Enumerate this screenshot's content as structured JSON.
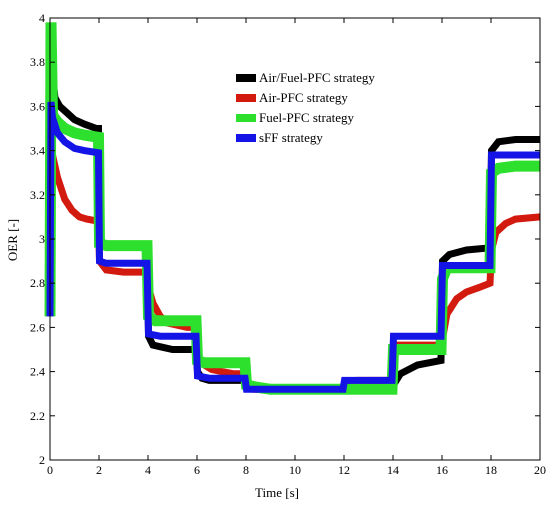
{
  "chart_data": {
    "type": "line",
    "xlabel": "Time [s]",
    "ylabel": "OER [-]",
    "xlim": [
      0,
      20
    ],
    "ylim": [
      2,
      4
    ],
    "xticks": [
      "0",
      "2",
      "4",
      "6",
      "8",
      "10",
      "12",
      "14",
      "16",
      "18",
      "20"
    ],
    "yticks": [
      "2",
      "2.2",
      "2.4",
      "2.6",
      "2.8",
      "3",
      "3.2",
      "3.4",
      "3.6",
      "3.8",
      "4"
    ],
    "grid": false,
    "legend_position": "top-center",
    "series": [
      {
        "name": "Air/Fuel-PFC strategy",
        "color": "#000000",
        "width": 7,
        "x": [
          0,
          0.04,
          0.1,
          0.2,
          0.4,
          0.7,
          1.0,
          1.4,
          1.9,
          1.98,
          2.02,
          2.1,
          2.5,
          3.0,
          3.5,
          3.96,
          4.02,
          4.2,
          4.6,
          5.0,
          5.5,
          5.96,
          6.02,
          6.2,
          6.5,
          7.0,
          7.5,
          7.96,
          8.02,
          8.5,
          9.0,
          10.0,
          11.0,
          11.96,
          12.02,
          13.0,
          13.96,
          14.02,
          14.3,
          15.0,
          15.96,
          16.02,
          16.3,
          17.0,
          17.96,
          18.02,
          18.3,
          19.0,
          20.0
        ],
        "y": [
          2.65,
          3.9,
          3.75,
          3.64,
          3.6,
          3.57,
          3.54,
          3.52,
          3.5,
          3.5,
          3.0,
          2.98,
          2.97,
          2.97,
          2.97,
          2.97,
          2.56,
          2.52,
          2.51,
          2.5,
          2.5,
          2.5,
          2.4,
          2.37,
          2.36,
          2.36,
          2.36,
          2.36,
          2.33,
          2.32,
          2.32,
          2.32,
          2.32,
          2.32,
          2.32,
          2.33,
          2.33,
          2.34,
          2.39,
          2.43,
          2.45,
          2.9,
          2.93,
          2.95,
          2.96,
          3.4,
          3.44,
          3.45,
          3.45
        ]
      },
      {
        "name": "Air-PFC strategy",
        "color": "#d21a0e",
        "width": 7,
        "x": [
          0,
          0.04,
          0.1,
          0.3,
          0.6,
          0.9,
          1.2,
          1.5,
          1.98,
          2.02,
          2.3,
          3.0,
          3.96,
          4.02,
          4.2,
          4.5,
          4.8,
          5.2,
          5.6,
          5.96,
          6.02,
          6.3,
          6.6,
          7.0,
          7.5,
          7.96,
          8.02,
          8.3,
          9.0,
          10.0,
          11.0,
          11.96,
          12.02,
          12.5,
          13.96,
          14.02,
          14.5,
          15.96,
          16.02,
          16.2,
          16.6,
          17.0,
          17.5,
          17.96,
          18.02,
          18.2,
          18.6,
          19.0,
          20.0
        ],
        "y": [
          2.65,
          3.42,
          3.38,
          3.28,
          3.18,
          3.13,
          3.1,
          3.09,
          3.08,
          2.9,
          2.86,
          2.85,
          2.85,
          2.78,
          2.71,
          2.65,
          2.62,
          2.61,
          2.6,
          2.6,
          2.47,
          2.43,
          2.41,
          2.4,
          2.39,
          2.39,
          2.33,
          2.32,
          2.32,
          2.32,
          2.32,
          2.32,
          2.35,
          2.36,
          2.36,
          2.52,
          2.52,
          2.52,
          2.55,
          2.66,
          2.73,
          2.76,
          2.78,
          2.8,
          2.95,
          3.03,
          3.07,
          3.09,
          3.1
        ]
      },
      {
        "name": "Fuel-PFC strategy",
        "color": "#2ee02e",
        "width": 11,
        "x": [
          0,
          0.04,
          0.1,
          0.3,
          0.6,
          1.0,
          1.4,
          1.98,
          2.02,
          2.3,
          3.0,
          3.96,
          4.02,
          4.3,
          5.0,
          5.96,
          6.02,
          6.3,
          7.0,
          7.96,
          8.02,
          8.4,
          9.0,
          10.0,
          11.0,
          12.0,
          13.0,
          13.96,
          14.02,
          14.3,
          15.0,
          15.96,
          16.02,
          16.2,
          16.5,
          17.0,
          17.96,
          18.02,
          18.3,
          19.0,
          20.0
        ],
        "y": [
          2.65,
          3.98,
          3.56,
          3.53,
          3.5,
          3.48,
          3.47,
          3.46,
          2.98,
          2.97,
          2.97,
          2.97,
          2.65,
          2.63,
          2.63,
          2.63,
          2.45,
          2.44,
          2.44,
          2.44,
          2.34,
          2.33,
          2.32,
          2.32,
          2.32,
          2.32,
          2.32,
          2.32,
          2.5,
          2.5,
          2.5,
          2.5,
          2.82,
          2.87,
          2.87,
          2.87,
          2.87,
          3.3,
          3.32,
          3.33,
          3.33
        ]
      },
      {
        "name": "sFF strategy",
        "color": "#1414e6",
        "width": 7,
        "x": [
          0,
          0.04,
          0.1,
          0.3,
          0.6,
          1.0,
          1.4,
          1.98,
          2.02,
          2.3,
          3.0,
          3.96,
          4.02,
          4.5,
          5.0,
          5.96,
          6.02,
          6.5,
          7.0,
          7.96,
          8.02,
          9.0,
          10.0,
          11.0,
          11.96,
          12.02,
          13.0,
          13.96,
          14.02,
          15.0,
          15.96,
          16.02,
          17.0,
          17.96,
          18.02,
          19.0,
          20.0
        ],
        "y": [
          2.65,
          3.62,
          3.55,
          3.48,
          3.44,
          3.41,
          3.4,
          3.39,
          2.9,
          2.89,
          2.89,
          2.89,
          2.57,
          2.56,
          2.56,
          2.56,
          2.38,
          2.37,
          2.37,
          2.37,
          2.32,
          2.32,
          2.32,
          2.32,
          2.32,
          2.36,
          2.36,
          2.36,
          2.56,
          2.56,
          2.56,
          2.88,
          2.88,
          2.88,
          3.38,
          3.38,
          3.38
        ]
      }
    ]
  }
}
